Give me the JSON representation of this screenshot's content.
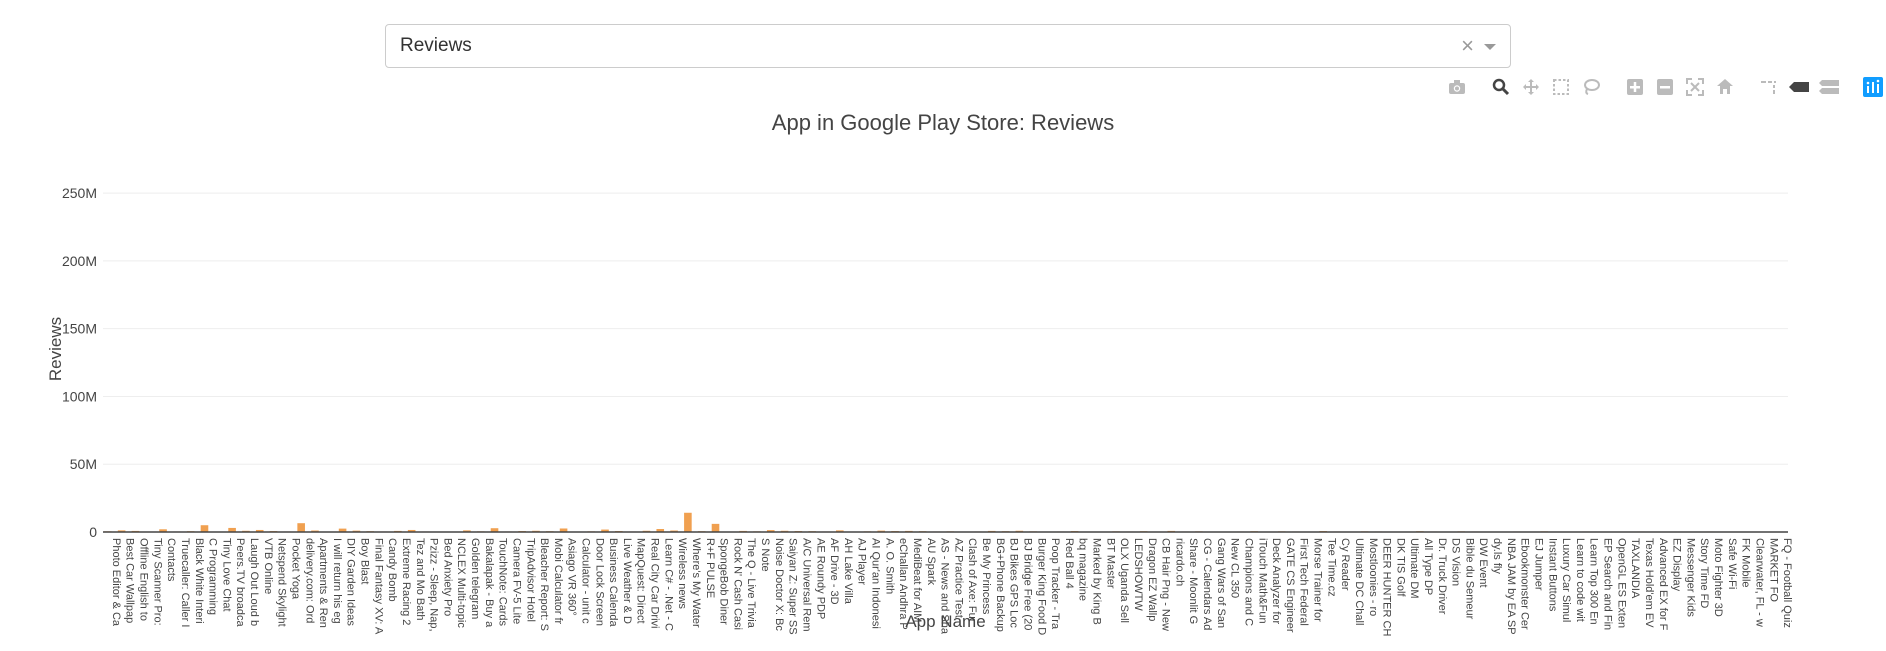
{
  "dropdown": {
    "selected": "Reviews",
    "clear_symbol": "×"
  },
  "modebar": {
    "icons": [
      "camera-icon",
      "zoom-icon",
      "pan-icon",
      "box-select-icon",
      "lasso-select-icon",
      "zoom-in-icon",
      "zoom-out-icon",
      "autoscale-icon",
      "reset-axes-icon",
      "spike-lines-icon",
      "hover-closest-icon",
      "hover-compare-icon",
      "plotly-logo-icon"
    ],
    "active_color": "#444444",
    "inactive_color": "#bbbbbb",
    "logo_color": "#3f4f75"
  },
  "chart_data": {
    "type": "bar",
    "title": "App in Google Play Store: Reviews",
    "xlabel": "App Name",
    "ylabel": "Reviews",
    "ylim": [
      0,
      270000000
    ],
    "yticks": [
      0,
      50000000,
      100000000,
      150000000,
      200000000,
      250000000
    ],
    "ytick_labels": [
      "0",
      "50M",
      "100M",
      "150M",
      "200M",
      "250M"
    ],
    "bar_color": "#f0a050",
    "grid": true,
    "categories": [
      "Photo Editor & Ca",
      "Best Car Wallpap",
      "Offline English to",
      "Tiny Scanner Pro:",
      "Contacts",
      "Truecaller: Caller I",
      "Black White Interi",
      "C Programming",
      "Tiny Love Chat",
      "Peers.TV broadca",
      "Laugh Out Loud b",
      "VTB Online",
      "Netspend Skylight",
      "Pocket Yoga",
      "delivery.com: Ord",
      "Apartments & Ren",
      "I will return his eg",
      "DIY Garden Ideas",
      "Boy Blast",
      "Final Fantasy XV: A",
      "Candy Bomb",
      "Extreme Racing 2",
      "Tez and Mo Bath",
      "Pzizz - Sleep, Nap,",
      "Bed Anxiety Pro",
      "NCLEX Multi-topic",
      "Golden telegram",
      "Bakalapak - Buy a",
      "TouchNote: Cards",
      "Camera FV-5 Lite",
      "TripAdvisor Hotel",
      "Bleacher Report: S",
      "Mobi Calculator fr",
      "Asiago VR 360°",
      "Calculator - unit c",
      "Door Lock Screen",
      "Business Calenda",
      "Live Weather & D",
      "MapQuest: Direct",
      "Real City Car Drivi",
      "Learn C# - .Net - C",
      "Wireless news",
      "Where's My Water",
      "R+F PULSE",
      "SpongeBob Diner",
      "Rock N' Cash Casi",
      "The Q - Live Trivia",
      "S Note",
      "Noise Doctor X: Bc",
      "Saiyan Z: Super SS",
      "A/C Universal Rem",
      "AE Roundy PDP",
      "AF Drive - 3D",
      "AH Lake Villa",
      "AJ Player",
      "AI Qur'an Indonesi",
      "A. O. Smith",
      "eChallan Andhra P",
      "MediBeat for AIM",
      "AU Spark",
      "AS - News and Sha",
      "AZ Practice Test",
      "Clash of Axe: Fur",
      "Be My Princess",
      "BG+Phone Backup",
      "BJ Bikes GPS Loc",
      "BJ Bridge Free (20",
      "Burger King Food D",
      "Poop Tracker - Tra",
      "Red Ball 4",
      "bq magazine",
      "Marked by King B",
      "BT Master",
      "OLX Uganda Sell",
      "LEDSHOWTW",
      "Dragon EZ Wallp",
      "CB Hair Png - New",
      "ricardo.ch",
      "Share - Moonlit G",
      "CG - Calendars Ad",
      "Gang Wars of San",
      "New CL 350",
      "Champions and C",
      "iTouch Math&Fun",
      "Deck Analyzer for",
      "GATE CS Engineer",
      "First Tech Federal",
      "Morse Trainer for",
      "Tee Time.cz",
      "Cy Reader",
      "Ultimate DC Chall",
      "Mostloonies - ro",
      "DEER HUNTER CH",
      "DK TIS Golf",
      "Ultimate DM",
      "All Type DP",
      "Dr. Truck Driver",
      "DS Vision",
      "Bible du Semeur",
      "DW Event",
      "dy.ls fly",
      "NBA JAM by EA SP",
      "Ebookmonster Cer",
      "EJ Jumper",
      "Instant Buttons",
      "Luxury Car Simul",
      "Learn to code wit",
      "Learn Top 300 En",
      "EP Search and Fin",
      "OpenGL ES Exten",
      "TAXLANDIA",
      "Texas Hold'em EV",
      "Advanced EX for F",
      "EZ Display",
      "Messenger Kids",
      "Story Time FD",
      "Moto Fighter 3D",
      "Safe Wi-Fi",
      "FK Mobile",
      "Clearwater, FL - w",
      "MARKET FO",
      "FQ - Football Quiz"
    ],
    "values": [
      500000,
      1200000,
      800000,
      300000,
      2000000,
      400000,
      600000,
      5000000,
      200000,
      3000000,
      900000,
      1500000,
      700000,
      400000,
      6500000,
      1100000,
      300000,
      2500000,
      1000000,
      600000,
      400000,
      800000,
      1500000,
      400000,
      200000,
      300000,
      1200000,
      500000,
      2800000,
      400000,
      700000,
      900000,
      600000,
      2600000,
      300000,
      500000,
      1800000,
      700000,
      400000,
      900000,
      2200000,
      1100000,
      14200000,
      600000,
      6000000,
      300000,
      800000,
      500000,
      1400000,
      900000,
      700000,
      600000,
      400000,
      1200000,
      300000,
      500000,
      1000000,
      700000,
      800000,
      600000,
      400000,
      500000,
      300000,
      400000,
      800000,
      600000,
      900000,
      500000,
      300000,
      400000,
      700000,
      200000,
      300000,
      500000,
      400000,
      600000,
      300000,
      800000,
      400000,
      500000,
      300000,
      200000,
      400000,
      600000,
      300000,
      500000,
      400000,
      300000,
      700000,
      400000,
      300000,
      500000,
      400000,
      300000,
      200000,
      600000,
      400000,
      300000,
      500000,
      400000,
      300000,
      200000,
      400000,
      300000,
      500000,
      300000,
      200000,
      400000,
      300000,
      200000,
      300000,
      400000,
      200000,
      300000,
      200000,
      300000,
      400000,
      200000,
      300000,
      200000,
      300000,
      200000
    ],
    "series_values_full_resolution_note": ""
  }
}
